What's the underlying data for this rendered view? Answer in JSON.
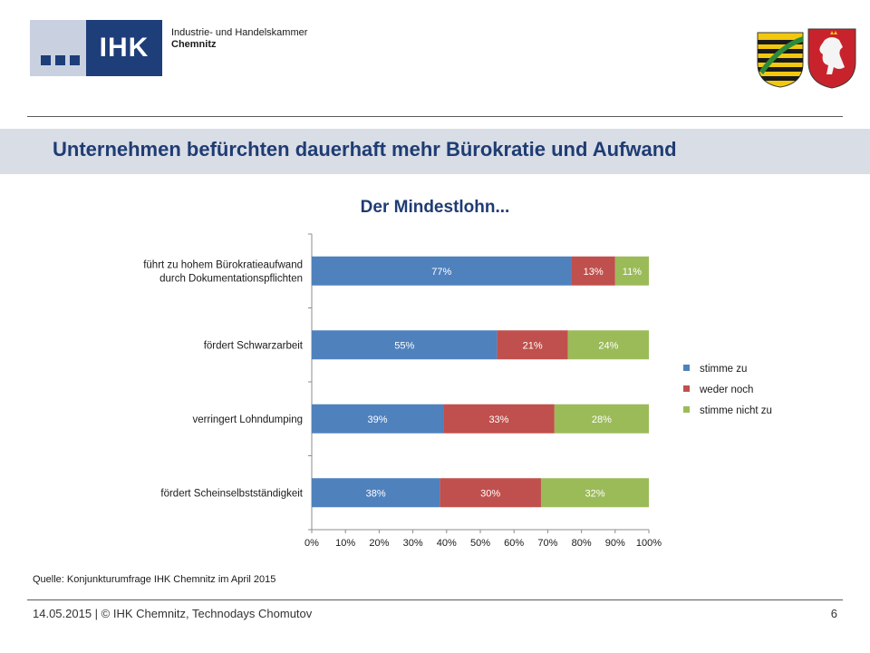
{
  "header": {
    "logo_text": "IHK",
    "org_line1": "Industrie- und Handelskammer",
    "org_line2": "Chemnitz"
  },
  "slide_title": "Unternehmen befürchten dauerhaft mehr Bürokratie und Aufwand",
  "chart_data": {
    "type": "bar",
    "orientation": "horizontal",
    "stacked": "percent",
    "title": "Der Mindestlohn...",
    "categories": [
      "führt zu hohem Bürokratieaufwand durch Dokumentationspflichten",
      "fördert Schwarzarbeit",
      "verringert Lohndumping",
      "fördert Scheinselbstständigkeit"
    ],
    "category_lines": [
      [
        "führt zu hohem Bürokratieaufwand",
        "durch Dokumentationspflichten"
      ],
      [
        "fördert Schwarzarbeit"
      ],
      [
        "verringert Lohndumping"
      ],
      [
        "fördert Scheinselbstständigkeit"
      ]
    ],
    "series": [
      {
        "name": "stimme zu",
        "color": "#4f81bd",
        "values": [
          77,
          55,
          39,
          38
        ],
        "labels": [
          "77%",
          "55%",
          "39%",
          "38%"
        ]
      },
      {
        "name": "weder noch",
        "color": "#c0504d",
        "values": [
          13,
          21,
          33,
          30
        ],
        "labels": [
          "13%",
          "21%",
          "33%",
          "30%"
        ]
      },
      {
        "name": "stimme nicht zu",
        "color": "#9bbb59",
        "values": [
          11,
          24,
          28,
          32
        ],
        "labels": [
          "11%",
          "24%",
          "28%",
          "32%"
        ]
      }
    ],
    "x_ticks": [
      "0%",
      "10%",
      "20%",
      "30%",
      "40%",
      "50%",
      "60%",
      "70%",
      "80%",
      "90%",
      "100%"
    ],
    "xlim": [
      0,
      100
    ],
    "grid": false,
    "legend_position": "right"
  },
  "source_text": "Quelle: Konjunkturumfrage IHK Chemnitz im April 2015",
  "footer": {
    "left": "14.05.2015 | © IHK Chemnitz, Technodays Chomutov",
    "page_number": "6"
  }
}
